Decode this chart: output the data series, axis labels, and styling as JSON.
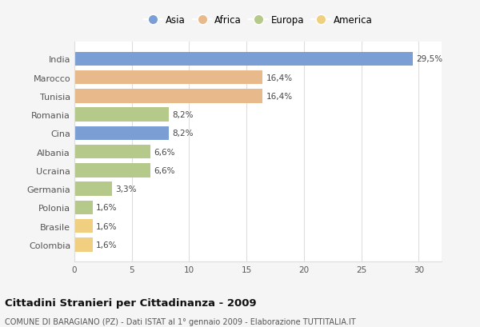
{
  "countries": [
    "India",
    "Marocco",
    "Tunisia",
    "Romania",
    "Cina",
    "Albania",
    "Ucraina",
    "Germania",
    "Polonia",
    "Brasile",
    "Colombia"
  ],
  "values": [
    29.5,
    16.4,
    16.4,
    8.2,
    8.2,
    6.6,
    6.6,
    3.3,
    1.6,
    1.6,
    1.6
  ],
  "labels": [
    "29,5%",
    "16,4%",
    "16,4%",
    "8,2%",
    "8,2%",
    "6,6%",
    "6,6%",
    "3,3%",
    "1,6%",
    "1,6%",
    "1,6%"
  ],
  "colors": [
    "#7b9fd4",
    "#e8b98a",
    "#e8b98a",
    "#b5c98a",
    "#7b9fd4",
    "#b5c98a",
    "#b5c98a",
    "#b5c98a",
    "#b5c98a",
    "#f0d080",
    "#f0d080"
  ],
  "legend_labels": [
    "Asia",
    "Africa",
    "Europa",
    "America"
  ],
  "legend_colors": [
    "#7b9fd4",
    "#e8b98a",
    "#b5c98a",
    "#f0d080"
  ],
  "xlim": [
    0,
    32
  ],
  "xticks": [
    0,
    5,
    10,
    15,
    20,
    25,
    30
  ],
  "title": "Cittadini Stranieri per Cittadinanza - 2009",
  "subtitle": "COMUNE DI BARAGIANO (PZ) - Dati ISTAT al 1° gennaio 2009 - Elaborazione TUTTITALIA.IT",
  "bg_color": "#f5f5f5",
  "plot_bg_color": "#ffffff",
  "grid_color": "#dddddd",
  "label_color": "#555555",
  "value_color": "#444444"
}
